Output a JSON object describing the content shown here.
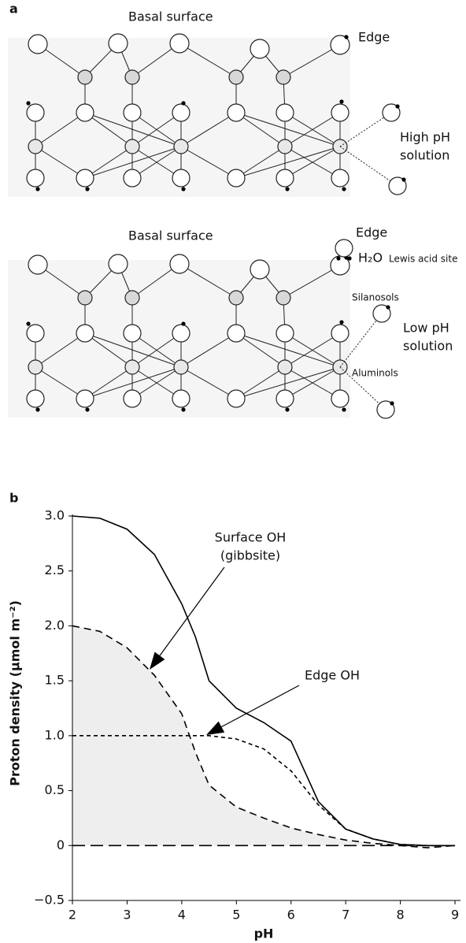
{
  "panel_a": {
    "label": "a",
    "upper": {
      "basal": "Basal surface",
      "edge": "Edge",
      "solution": [
        "High pH",
        "solution"
      ]
    },
    "lower": {
      "basal": "Basal surface",
      "edge": "Edge",
      "water": "H₂O",
      "lewis": "Lewis acid site",
      "silanols": "Silanosols",
      "solution": [
        "Low pH",
        "solution"
      ],
      "aluminols": "Aluminols"
    }
  },
  "chart_data": {
    "type": "line",
    "label": "b",
    "xlabel": "pH",
    "ylabel": "Proton density (µmol m⁻²)",
    "x": [
      2,
      2.5,
      3,
      3.5,
      4,
      4.25,
      4.5,
      5,
      5.5,
      6,
      6.5,
      7,
      7.5,
      8,
      8.5,
      9
    ],
    "series": [
      {
        "linestyle": "solid",
        "color": "#000000",
        "values": [
          3.0,
          2.98,
          2.88,
          2.65,
          2.2,
          1.9,
          1.5,
          1.25,
          1.12,
          0.95,
          0.4,
          0.15,
          0.06,
          0.01,
          0,
          0
        ]
      },
      {
        "linestyle": "dashed",
        "color": "#000000",
        "fill": "#eeeeee",
        "values": [
          2.0,
          1.95,
          1.8,
          1.55,
          1.2,
          0.85,
          0.55,
          0.35,
          0.25,
          0.16,
          0.1,
          0.05,
          0.02,
          0,
          -0.02,
          0
        ]
      },
      {
        "linestyle": "dotted",
        "color": "#000000",
        "values": [
          1.0,
          1.0,
          1.0,
          1.0,
          1.0,
          1.0,
          1.0,
          0.97,
          0.88,
          0.68,
          0.37,
          0.15,
          0.06,
          0.01,
          0,
          0
        ]
      },
      {
        "linestyle": "long-dashed",
        "color": "#000000",
        "values": [
          0,
          0,
          0,
          0,
          0,
          0,
          0,
          0,
          0,
          0,
          0,
          0,
          0,
          0,
          0,
          0
        ]
      }
    ],
    "annotations": [
      {
        "text": [
          "Surface OH",
          "(gibbsite)"
        ]
      },
      {
        "text": [
          "Edge OH"
        ]
      }
    ],
    "xlim": [
      2,
      9.1
    ],
    "ylim": [
      -0.5,
      3.0
    ],
    "xticks": [
      2,
      3,
      4,
      5,
      6,
      7,
      8,
      9
    ],
    "yticks": [
      {
        "value": -0.5,
        "label": "−0.5"
      },
      0,
      0.5,
      {
        "value": 1,
        "label": "1.0"
      },
      1.5,
      {
        "value": 2,
        "label": "2.0"
      },
      2.5,
      {
        "value": 3,
        "label": "3.0"
      }
    ]
  }
}
